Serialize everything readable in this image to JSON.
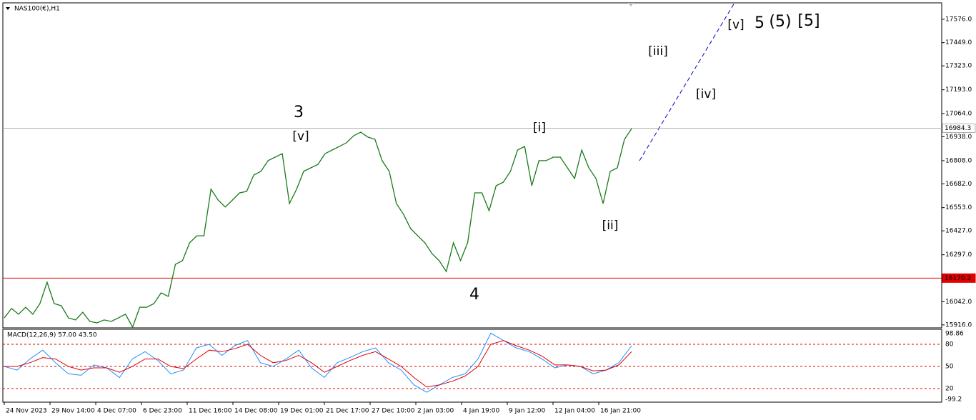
{
  "chart_data": {
    "type": "line",
    "title": "NAS100(€),H1",
    "ylim": [
      15900,
      17665
    ],
    "yticks": [
      {
        "value": 17576,
        "label": "17576.0"
      },
      {
        "value": 17449,
        "label": "17449.0"
      },
      {
        "value": 17323,
        "label": "17323.0"
      },
      {
        "value": 17193,
        "label": "17193.0"
      },
      {
        "value": 17064,
        "label": "17064.0"
      },
      {
        "value": 16938,
        "label": "16938.0"
      },
      {
        "value": 16808,
        "label": "16808.0"
      },
      {
        "value": 16682,
        "label": "16682.0"
      },
      {
        "value": 16553,
        "label": "16553.0"
      },
      {
        "value": 16427,
        "label": "16427.0"
      },
      {
        "value": 16297,
        "label": "16297.0"
      },
      {
        "value": 16042,
        "label": "16042.0"
      },
      {
        "value": 15916,
        "label": "15916.0"
      }
    ],
    "current_price": {
      "value": 16984.3,
      "label": "16984.3",
      "color": "#b0b0b0"
    },
    "level": {
      "value": 16170.2,
      "label": "16170.2",
      "color": "#e00000"
    },
    "series": [
      {
        "name": "NAS100",
        "color": "#1a7a1a",
        "values": [
          15954,
          16005,
          15974,
          16012,
          15974,
          16032,
          16148,
          16032,
          16020,
          15954,
          15943,
          15985,
          15935,
          15927,
          15943,
          15935,
          15954,
          15974,
          15904,
          16012,
          16012,
          16032,
          16090,
          16071,
          16245,
          16265,
          16362,
          16400,
          16400,
          16653,
          16594,
          16556,
          16594,
          16633,
          16641,
          16730,
          16750,
          16808,
          16827,
          16846,
          16575,
          16653,
          16750,
          16769,
          16788,
          16846,
          16866,
          16885,
          16905,
          16943,
          16963,
          16936,
          16924,
          16808,
          16750,
          16575,
          16517,
          16439,
          16400,
          16362,
          16303,
          16265,
          16206,
          16362,
          16265,
          16362,
          16633,
          16633,
          16536,
          16672,
          16691,
          16750,
          16866,
          16885,
          16672,
          16808,
          16808,
          16827,
          16827,
          16769,
          16711,
          16866,
          16769,
          16711,
          16575,
          16750,
          16769,
          16924,
          16982
        ]
      }
    ],
    "x_labels": [
      "24 Nov 2023",
      "29 Nov 14:00",
      "4 Dec 07:00",
      "6 Dec 23:00",
      "11 Dec 16:00",
      "14 Dec 08:00",
      "19 Dec 01:00",
      "21 Dec 17:00",
      "27 Dec 10:00",
      "2 Jan 03:00",
      "4 Jan 19:00",
      "9 Jan 12:00",
      "12 Jan 04:00",
      "16 Jan 21:00"
    ],
    "annotations": [
      {
        "label": "3",
        "color": "#0000ff"
      },
      {
        "label": "[v]",
        "color": "#1a8a1a"
      },
      {
        "label": "4",
        "color": "#0000ff"
      },
      {
        "label": "[i]",
        "color": "#1a8a1a"
      },
      {
        "label": "[ii]",
        "color": "#1a8a1a"
      },
      {
        "label": "[iii]",
        "color": "#1a8a1a"
      },
      {
        "label": "[iv]",
        "color": "#1a8a1a"
      },
      {
        "label": "[v]",
        "color": "#1a8a1a"
      },
      {
        "label": "5",
        "color": "#0000ff"
      },
      {
        "label": "(5)",
        "color": "#ff0000"
      },
      {
        "label": "[5]",
        "color": "#000000"
      }
    ],
    "oscillator": {
      "title": "MACD(12,26,9) 57.00 43.50",
      "ylim": [
        1.6,
        100.3
      ],
      "yticks": [
        80,
        50,
        20
      ],
      "max_label": "98.86",
      "min_label": "-99.2",
      "series": [
        {
          "name": "main",
          "color": "#1e90ff",
          "values": [
            50,
            45,
            60,
            72,
            55,
            40,
            38,
            52,
            48,
            35,
            60,
            70,
            58,
            40,
            45,
            75,
            80,
            65,
            78,
            85,
            55,
            50,
            60,
            72,
            48,
            35,
            55,
            62,
            70,
            75,
            55,
            45,
            25,
            15,
            25,
            35,
            40,
            60,
            95,
            85,
            75,
            70,
            60,
            48,
            52,
            50,
            40,
            45,
            55,
            78
          ]
        },
        {
          "name": "signal",
          "color": "#e00000",
          "values": [
            50,
            50,
            55,
            62,
            60,
            50,
            45,
            48,
            48,
            42,
            50,
            60,
            60,
            50,
            47,
            60,
            72,
            70,
            74,
            80,
            65,
            55,
            58,
            65,
            55,
            42,
            50,
            58,
            65,
            70,
            60,
            50,
            35,
            22,
            25,
            30,
            37,
            50,
            80,
            85,
            78,
            72,
            64,
            52,
            52,
            50,
            44,
            45,
            52,
            70
          ]
        }
      ]
    }
  }
}
